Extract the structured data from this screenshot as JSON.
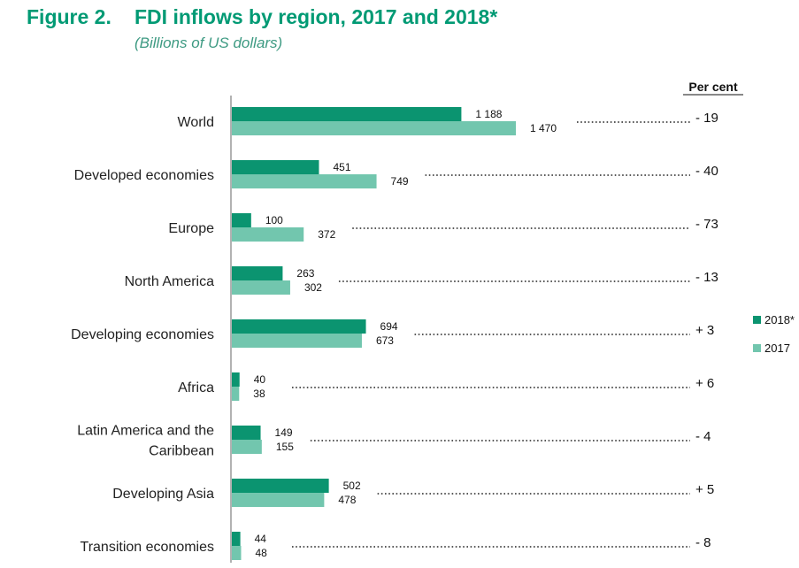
{
  "figure": {
    "number": "Figure 2.",
    "title": "FDI inflows by region, 2017 and 2018*",
    "subtitle": "(Billions of US dollars)"
  },
  "chart_data": {
    "type": "bar",
    "orientation": "horizontal",
    "categories": [
      "World",
      "Developed economies",
      "Europe",
      "North America",
      "Developing economies",
      "Africa",
      "Latin America and the Caribbean",
      "Developing Asia",
      "Transition economies"
    ],
    "category_lines": [
      [
        "World"
      ],
      [
        "Developed economies"
      ],
      [
        "Europe"
      ],
      [
        "North America"
      ],
      [
        "Developing economies"
      ],
      [
        "Africa"
      ],
      [
        "Latin America and the",
        "Caribbean"
      ],
      [
        "Developing Asia"
      ],
      [
        "Transition economies"
      ]
    ],
    "series": [
      {
        "name": "2018*",
        "color": "#0b9470",
        "values": [
          1188,
          451,
          100,
          263,
          694,
          40,
          149,
          502,
          44
        ],
        "labels": [
          "1 188",
          "451",
          "100",
          "263",
          "694",
          "40",
          "149",
          "502",
          "44"
        ]
      },
      {
        "name": "2017",
        "color": "#72c6ae",
        "values": [
          1470,
          749,
          372,
          302,
          673,
          38,
          155,
          478,
          48
        ],
        "labels": [
          "1 470",
          "749",
          "372",
          "302",
          "673",
          "38",
          "155",
          "478",
          "48"
        ]
      }
    ],
    "percent_change": {
      "header": "Per cent",
      "values": [
        "- 19",
        "- 40",
        "- 73",
        "- 13",
        "+ 3",
        "+ 6",
        "- 4",
        "+ 5",
        "- 8"
      ]
    },
    "legend": [
      "2018*",
      "2017"
    ],
    "legend_position": "right",
    "xlim": [
      0,
      1500
    ]
  }
}
